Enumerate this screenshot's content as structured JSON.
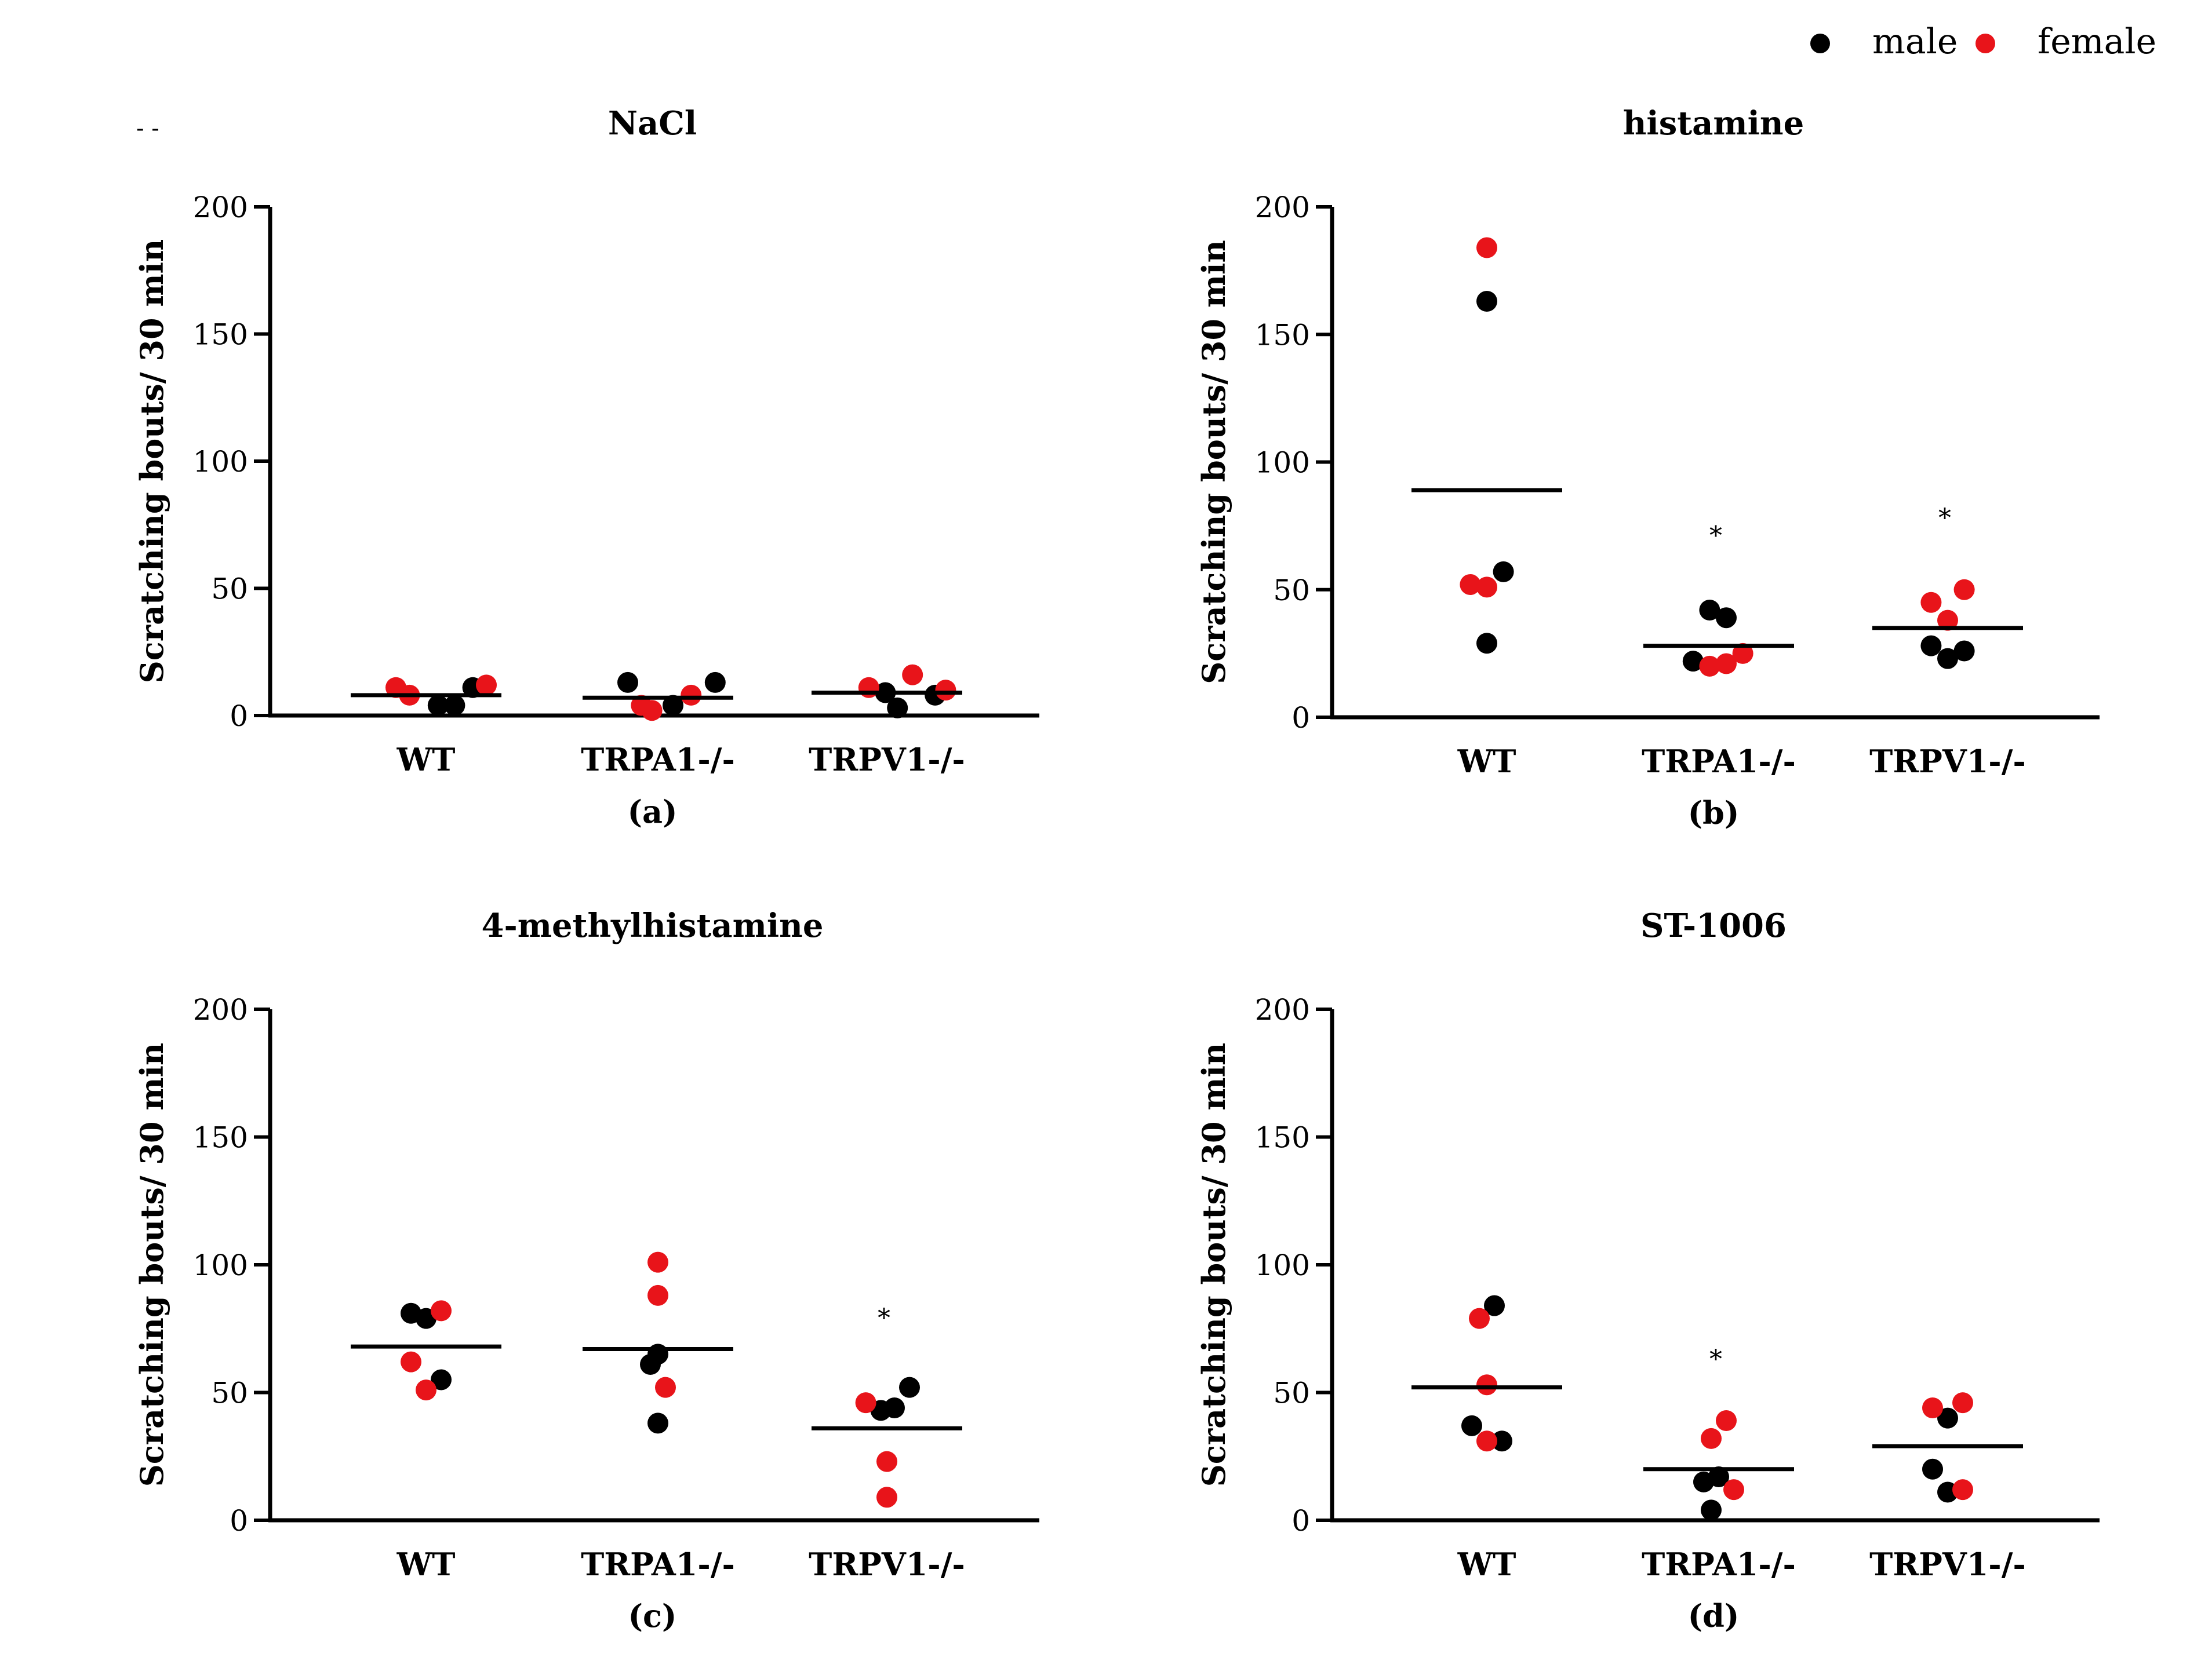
{
  "legend": {
    "entries": [
      {
        "label": "male",
        "color": "#000000"
      },
      {
        "label": "female",
        "color": "#e8141a"
      }
    ]
  },
  "corner_mark": "- -",
  "colors": {
    "male": "#000000",
    "female": "#e8141a",
    "axis": "#000000"
  },
  "chart_data": [
    {
      "type": "scatter",
      "panel_label": "(a)",
      "title": "NaCl",
      "ylabel": "Scratching bouts/ 30 min",
      "xlabel": "",
      "ylim": [
        0,
        200
      ],
      "yticks": [
        0,
        50,
        100,
        150,
        200
      ],
      "categories": [
        "WT",
        "TRPA1-/-",
        "TRPV1-/-"
      ],
      "means": [
        8,
        7,
        9
      ],
      "significance": [
        "",
        "",
        ""
      ],
      "series": [
        {
          "name": "male",
          "points": [
            {
              "category": "WT",
              "jitter": 0.4,
              "value": 4
            },
            {
              "category": "WT",
              "jitter": 0.95,
              "value": 4
            },
            {
              "category": "WT",
              "jitter": 1.55,
              "value": 11
            },
            {
              "category": "TRPA1-/-",
              "jitter": -1.0,
              "value": 13
            },
            {
              "category": "TRPA1-/-",
              "jitter": 0.5,
              "value": 4
            },
            {
              "category": "TRPA1-/-",
              "jitter": 1.9,
              "value": 13
            },
            {
              "category": "TRPV1-/-",
              "jitter": -0.05,
              "value": 9
            },
            {
              "category": "TRPV1-/-",
              "jitter": 0.35,
              "value": 3
            },
            {
              "category": "TRPV1-/-",
              "jitter": 1.6,
              "value": 8
            }
          ]
        },
        {
          "name": "female",
          "points": [
            {
              "category": "WT",
              "jitter": -1.0,
              "value": 11
            },
            {
              "category": "WT",
              "jitter": -0.55,
              "value": 8
            },
            {
              "category": "WT",
              "jitter": 2.0,
              "value": 12
            },
            {
              "category": "TRPA1-/-",
              "jitter": -0.55,
              "value": 4
            },
            {
              "category": "TRPA1-/-",
              "jitter": -0.2,
              "value": 2
            },
            {
              "category": "TRPA1-/-",
              "jitter": 1.1,
              "value": 8
            },
            {
              "category": "TRPV1-/-",
              "jitter": -0.6,
              "value": 11
            },
            {
              "category": "TRPV1-/-",
              "jitter": 0.85,
              "value": 16
            },
            {
              "category": "TRPV1-/-",
              "jitter": 1.95,
              "value": 10
            }
          ]
        }
      ]
    },
    {
      "type": "scatter",
      "panel_label": "(b)",
      "title": "histamine",
      "ylabel": "Scratching bouts/ 30 min",
      "xlabel": "",
      "ylim": [
        0,
        200
      ],
      "yticks": [
        0,
        50,
        100,
        150,
        200
      ],
      "categories": [
        "WT",
        "TRPA1-/-",
        "TRPV1-/-"
      ],
      "means": [
        89,
        28,
        35
      ],
      "significance": [
        "",
        "*",
        "*"
      ],
      "series": [
        {
          "name": "male",
          "points": [
            {
              "category": "WT",
              "jitter": 0.0,
              "value": 163
            },
            {
              "category": "WT",
              "jitter": 0.0,
              "value": 29
            },
            {
              "category": "WT",
              "jitter": 0.55,
              "value": 57
            },
            {
              "category": "TRPA1-/-",
              "jitter": -0.3,
              "value": 42
            },
            {
              "category": "TRPA1-/-",
              "jitter": -0.85,
              "value": 22
            },
            {
              "category": "TRPA1-/-",
              "jitter": 0.25,
              "value": 39
            },
            {
              "category": "TRPV1-/-",
              "jitter": -0.55,
              "value": 28
            },
            {
              "category": "TRPV1-/-",
              "jitter": 0.0,
              "value": 23
            },
            {
              "category": "TRPV1-/-",
              "jitter": 0.55,
              "value": 26
            }
          ]
        },
        {
          "name": "female",
          "points": [
            {
              "category": "WT",
              "jitter": 0.0,
              "value": 184
            },
            {
              "category": "WT",
              "jitter": -0.55,
              "value": 52
            },
            {
              "category": "WT",
              "jitter": 0.0,
              "value": 51
            },
            {
              "category": "TRPA1-/-",
              "jitter": -0.3,
              "value": 20
            },
            {
              "category": "TRPA1-/-",
              "jitter": 0.25,
              "value": 21
            },
            {
              "category": "TRPA1-/-",
              "jitter": 0.8,
              "value": 25
            },
            {
              "category": "TRPV1-/-",
              "jitter": -0.55,
              "value": 45
            },
            {
              "category": "TRPV1-/-",
              "jitter": 0.55,
              "value": 50
            },
            {
              "category": "TRPV1-/-",
              "jitter": 0.0,
              "value": 38
            }
          ]
        }
      ]
    },
    {
      "type": "scatter",
      "panel_label": "(c)",
      "title": "4-methylhistamine",
      "ylabel": "Scratching bouts/ 30 min",
      "xlabel": "",
      "ylim": [
        0,
        200
      ],
      "yticks": [
        0,
        50,
        100,
        150,
        200
      ],
      "categories": [
        "WT",
        "TRPA1-/-",
        "TRPV1-/-"
      ],
      "means": [
        68,
        67,
        36
      ],
      "significance": [
        "",
        "",
        "*"
      ],
      "series": [
        {
          "name": "male",
          "points": [
            {
              "category": "WT",
              "jitter": -0.5,
              "value": 81
            },
            {
              "category": "WT",
              "jitter": 0.0,
              "value": 79
            },
            {
              "category": "WT",
              "jitter": 0.5,
              "value": 55
            },
            {
              "category": "TRPA1-/-",
              "jitter": -0.25,
              "value": 61
            },
            {
              "category": "TRPA1-/-",
              "jitter": 0.0,
              "value": 65
            },
            {
              "category": "TRPA1-/-",
              "jitter": 0.0,
              "value": 38
            },
            {
              "category": "TRPV1-/-",
              "jitter": -0.2,
              "value": 43
            },
            {
              "category": "TRPV1-/-",
              "jitter": 0.25,
              "value": 44
            },
            {
              "category": "TRPV1-/-",
              "jitter": 0.75,
              "value": 52
            }
          ]
        },
        {
          "name": "female",
          "points": [
            {
              "category": "WT",
              "jitter": 0.5,
              "value": 82
            },
            {
              "category": "WT",
              "jitter": -0.5,
              "value": 62
            },
            {
              "category": "WT",
              "jitter": 0.0,
              "value": 51
            },
            {
              "category": "TRPA1-/-",
              "jitter": 0.0,
              "value": 101
            },
            {
              "category": "TRPA1-/-",
              "jitter": 0.0,
              "value": 88
            },
            {
              "category": "TRPA1-/-",
              "jitter": 0.25,
              "value": 52
            },
            {
              "category": "TRPV1-/-",
              "jitter": -0.7,
              "value": 46
            },
            {
              "category": "TRPV1-/-",
              "jitter": 0.0,
              "value": 23
            },
            {
              "category": "TRPV1-/-",
              "jitter": 0.0,
              "value": 9
            }
          ]
        }
      ]
    },
    {
      "type": "scatter",
      "panel_label": "(d)",
      "title": "ST-1006",
      "ylabel": "Scratching bouts/ 30 min",
      "xlabel": "",
      "ylim": [
        0,
        200
      ],
      "yticks": [
        0,
        50,
        100,
        150,
        200
      ],
      "categories": [
        "WT",
        "TRPA1-/-",
        "TRPV1-/-"
      ],
      "means": [
        52,
        20,
        29
      ],
      "significance": [
        "",
        "*",
        ""
      ],
      "series": [
        {
          "name": "male",
          "points": [
            {
              "category": "WT",
              "jitter": 0.25,
              "value": 84
            },
            {
              "category": "WT",
              "jitter": -0.5,
              "value": 37
            },
            {
              "category": "WT",
              "jitter": 0.5,
              "value": 31
            },
            {
              "category": "TRPA1-/-",
              "jitter": -0.5,
              "value": 15
            },
            {
              "category": "TRPA1-/-",
              "jitter": 0.0,
              "value": 17
            },
            {
              "category": "TRPA1-/-",
              "jitter": -0.25,
              "value": 4
            },
            {
              "category": "TRPV1-/-",
              "jitter": -0.5,
              "value": 20
            },
            {
              "category": "TRPV1-/-",
              "jitter": 0.0,
              "value": 40
            },
            {
              "category": "TRPV1-/-",
              "jitter": 0.0,
              "value": 11
            }
          ]
        },
        {
          "name": "female",
          "points": [
            {
              "category": "WT",
              "jitter": -0.25,
              "value": 79
            },
            {
              "category": "WT",
              "jitter": 0.0,
              "value": 53
            },
            {
              "category": "WT",
              "jitter": 0.0,
              "value": 31
            },
            {
              "category": "TRPA1-/-",
              "jitter": -0.25,
              "value": 32
            },
            {
              "category": "TRPA1-/-",
              "jitter": 0.25,
              "value": 39
            },
            {
              "category": "TRPA1-/-",
              "jitter": 0.5,
              "value": 12
            },
            {
              "category": "TRPV1-/-",
              "jitter": -0.5,
              "value": 44
            },
            {
              "category": "TRPV1-/-",
              "jitter": 0.5,
              "value": 46
            },
            {
              "category": "TRPV1-/-",
              "jitter": 0.5,
              "value": 12
            }
          ]
        }
      ]
    }
  ]
}
